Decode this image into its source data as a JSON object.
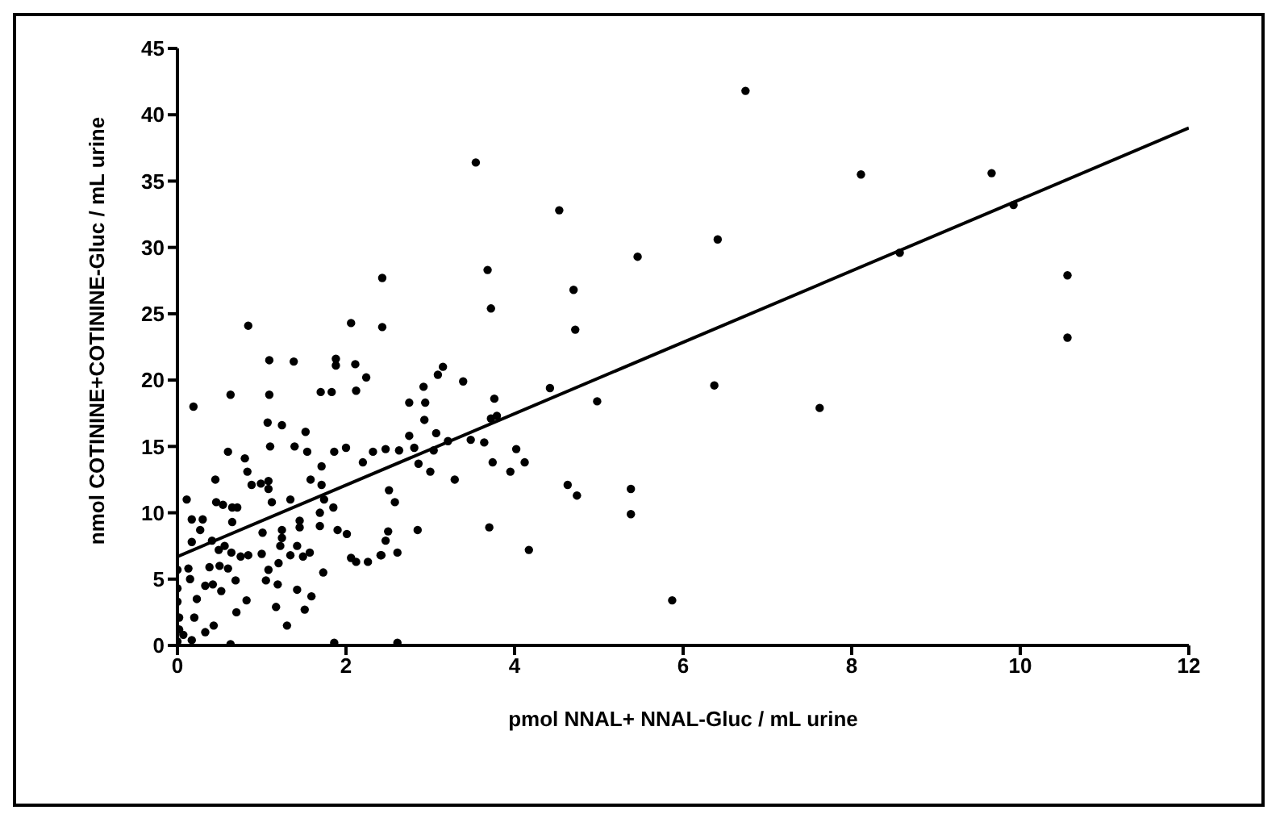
{
  "chart_data": {
    "type": "scatter",
    "xlabel": "pmol NNAL+ NNAL-Gluc / mL urine",
    "ylabel": "nmol COTININE+COTININE-Gluc / mL urine",
    "xlim": [
      0,
      12
    ],
    "xticks": [
      0,
      2,
      4,
      6,
      8,
      10,
      12
    ],
    "ylim": [
      0,
      45
    ],
    "yticks": [
      0,
      5,
      10,
      15,
      20,
      25,
      30,
      35,
      40,
      45
    ],
    "grid": false,
    "legend": false,
    "series": [
      {
        "color": "#000000",
        "marker": "circle",
        "x": [
          6.74,
          8.11,
          9.66,
          9.92,
          8.57,
          6.41,
          5.46,
          10.56,
          10.56,
          6.37,
          7.62,
          5.38,
          5.38,
          5.87,
          3.54,
          4.53,
          3.68,
          4.7,
          3.72,
          4.72,
          2.43,
          2.43,
          3.15,
          3.09,
          3.39,
          2.92,
          4.42,
          2.75,
          2.94,
          4.98,
          3.76,
          2.93,
          3.72,
          3.79,
          2.75,
          3.07,
          3.21,
          3.48,
          3.64,
          2.47,
          2.63,
          2.81,
          2.86,
          3.04,
          4.02,
          3.74,
          3.95,
          4.12,
          3.0,
          3.29,
          4.63,
          4.74,
          2.51,
          2.58,
          2.5,
          2.85,
          2.47,
          3.7,
          4.17,
          2.41,
          2.61,
          2.61,
          0.84,
          2.06,
          1.09,
          1.38,
          1.88,
          1.88,
          2.11,
          2.24,
          0.19,
          0.63,
          1.09,
          1.7,
          1.83,
          2.12,
          1.07,
          1.24,
          1.52,
          1.1,
          1.39,
          1.54,
          0.6,
          0.8,
          1.86,
          2.0,
          1.71,
          2.2,
          2.32,
          0.83,
          0.88,
          0.99,
          1.08,
          1.08,
          0.45,
          1.58,
          1.12,
          1.34,
          1.71,
          1.74,
          1.85,
          0.11,
          0.46,
          0.54,
          0.65,
          0.71,
          0.17,
          0.3,
          0.27,
          0.65,
          1.01,
          1.24,
          1.45,
          1.45,
          1.69,
          1.69,
          1.9,
          2.01,
          0.17,
          0.41,
          0.49,
          0.56,
          0.64,
          0.75,
          0.84,
          1.0,
          1.24,
          1.22,
          1.34,
          1.42,
          1.49,
          1.57,
          2.06,
          2.12,
          2.26,
          2.42,
          0.0,
          0.13,
          0.38,
          0.5,
          0.6,
          1.08,
          1.2,
          0.15,
          0.0,
          0.33,
          0.42,
          0.52,
          0.69,
          1.05,
          1.19,
          1.42,
          1.73,
          1.59,
          0.0,
          0.23,
          0.82,
          0.7,
          1.17,
          1.51,
          0.02,
          0.2,
          0.43,
          1.3,
          0.02,
          0.07,
          0.33,
          0.0,
          0.17,
          0.63,
          1.86
        ],
        "values": [
          41.8,
          35.5,
          35.6,
          33.2,
          29.6,
          30.6,
          29.3,
          27.9,
          23.2,
          19.6,
          17.9,
          11.8,
          9.9,
          3.4,
          36.4,
          32.8,
          28.3,
          26.8,
          25.4,
          23.8,
          27.7,
          24.0,
          21.0,
          20.4,
          19.9,
          19.5,
          19.4,
          18.3,
          18.3,
          18.4,
          18.6,
          17.0,
          17.1,
          17.3,
          15.8,
          16.0,
          15.4,
          15.5,
          15.3,
          14.8,
          14.7,
          14.9,
          13.7,
          14.7,
          14.8,
          13.8,
          13.1,
          13.8,
          13.1,
          12.5,
          12.1,
          11.3,
          11.7,
          10.8,
          8.6,
          8.7,
          7.9,
          8.9,
          7.2,
          6.8,
          7.0,
          0.2,
          24.1,
          24.3,
          21.5,
          21.4,
          21.6,
          21.1,
          21.2,
          20.2,
          18.0,
          18.9,
          18.9,
          19.1,
          19.1,
          19.2,
          16.8,
          16.6,
          16.1,
          15.0,
          15.0,
          14.6,
          14.6,
          14.1,
          14.6,
          14.9,
          13.5,
          13.8,
          14.6,
          13.1,
          12.1,
          12.2,
          12.4,
          11.8,
          12.5,
          12.5,
          10.8,
          11.0,
          12.1,
          11.0,
          10.4,
          11.0,
          10.8,
          10.6,
          10.4,
          10.4,
          9.5,
          9.5,
          8.7,
          9.3,
          8.5,
          8.7,
          9.4,
          8.9,
          10.0,
          9.0,
          8.7,
          8.4,
          7.8,
          7.9,
          7.2,
          7.5,
          7.0,
          6.7,
          6.8,
          6.9,
          8.1,
          7.5,
          6.8,
          7.5,
          6.7,
          7.0,
          6.6,
          6.3,
          6.3,
          6.8,
          5.7,
          5.8,
          5.9,
          6.0,
          5.8,
          5.7,
          6.2,
          5.0,
          4.3,
          4.5,
          4.6,
          4.1,
          4.9,
          4.9,
          4.6,
          4.2,
          5.5,
          3.7,
          3.3,
          3.5,
          3.4,
          2.5,
          2.9,
          2.7,
          2.1,
          2.1,
          1.5,
          1.5,
          1.2,
          0.8,
          1.0,
          0.3,
          0.4,
          0.1,
          0.2
        ]
      },
      {
        "type": "line",
        "color": "#000000",
        "x": [
          0,
          12
        ],
        "values": [
          6.7,
          39
        ]
      }
    ]
  }
}
